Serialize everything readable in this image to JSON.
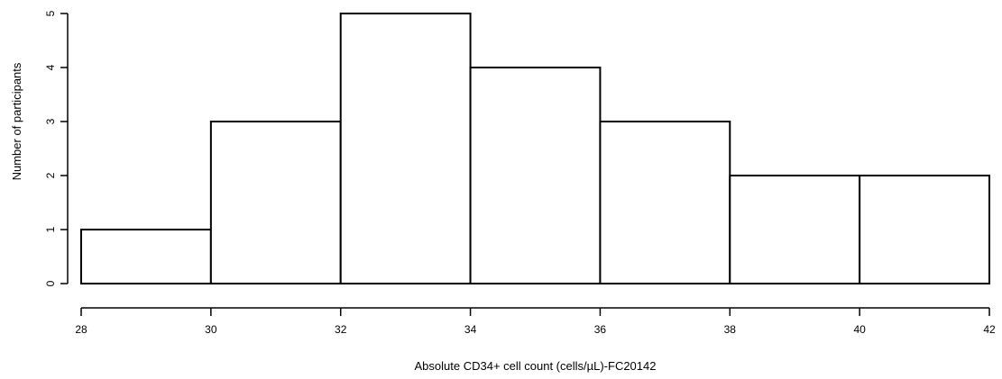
{
  "chart_data": {
    "type": "bar",
    "title": "",
    "xlabel": "Absolute CD34+ cell count (cells/µL)-FC20142",
    "ylabel": "Number of participants",
    "bins": [
      {
        "x0": 28,
        "x1": 30,
        "count": 1
      },
      {
        "x0": 30,
        "x1": 32,
        "count": 3
      },
      {
        "x0": 32,
        "x1": 34,
        "count": 5
      },
      {
        "x0": 34,
        "x1": 36,
        "count": 4
      },
      {
        "x0": 36,
        "x1": 38,
        "count": 3
      },
      {
        "x0": 38,
        "x1": 40,
        "count": 2
      },
      {
        "x0": 40,
        "x1": 42,
        "count": 2
      }
    ],
    "xlim": [
      28,
      42
    ],
    "ylim": [
      0,
      5
    ],
    "x_ticks": [
      "28",
      "30",
      "32",
      "34",
      "36",
      "38",
      "40",
      "42"
    ],
    "y_ticks": [
      "0",
      "1",
      "2",
      "3",
      "4",
      "5"
    ],
    "grid": false,
    "bar_fill": "#ffffff",
    "bar_stroke": "#000000"
  }
}
